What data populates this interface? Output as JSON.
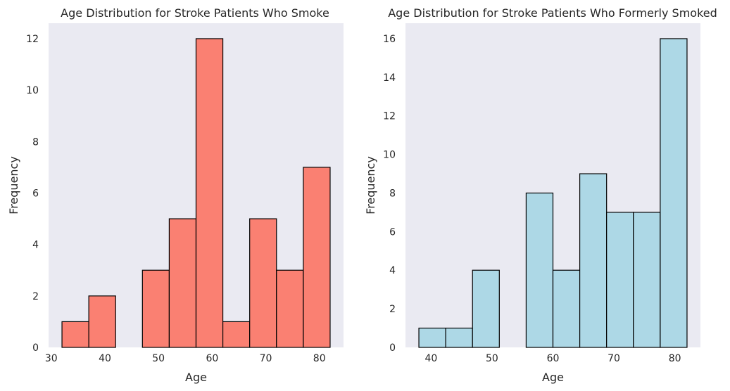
{
  "chart_data": [
    {
      "type": "bar",
      "title": "Age Distribution for Stroke Patients Who Smoke",
      "xlabel": "Age",
      "ylabel": "Frequency",
      "bin_edges": [
        32,
        37,
        42,
        47,
        52,
        57,
        62,
        67,
        72,
        77,
        82
      ],
      "values": [
        1,
        2,
        0,
        3,
        5,
        12,
        1,
        5,
        3,
        7
      ],
      "xlim": [
        29.5,
        84.5
      ],
      "ylim": [
        0,
        12.6
      ],
      "xticks": [
        30,
        40,
        50,
        60,
        70,
        80
      ],
      "yticks": [
        0,
        2,
        4,
        6,
        8,
        10,
        12
      ],
      "grid": false,
      "colors": {
        "bar": "#fa8072",
        "edge": "#000000",
        "background": "#eaeaf2"
      }
    },
    {
      "type": "bar",
      "title": "Age Distribution for Stroke Patients Who Formerly Smoked",
      "xlabel": "Age",
      "ylabel": "Frequency",
      "bin_edges": [
        38,
        42.4,
        46.8,
        51.2,
        55.6,
        60,
        64.4,
        68.8,
        73.2,
        77.6,
        82
      ],
      "values": [
        1,
        1,
        4,
        0,
        8,
        4,
        9,
        7,
        7,
        16
      ],
      "xlim": [
        35.8,
        84.2
      ],
      "ylim": [
        0,
        16.8
      ],
      "xticks": [
        40,
        50,
        60,
        70,
        80
      ],
      "yticks": [
        0,
        2,
        4,
        6,
        8,
        10,
        12,
        14,
        16
      ],
      "grid": false,
      "colors": {
        "bar": "#add8e6",
        "edge": "#000000",
        "background": "#eaeaf2"
      }
    }
  ]
}
